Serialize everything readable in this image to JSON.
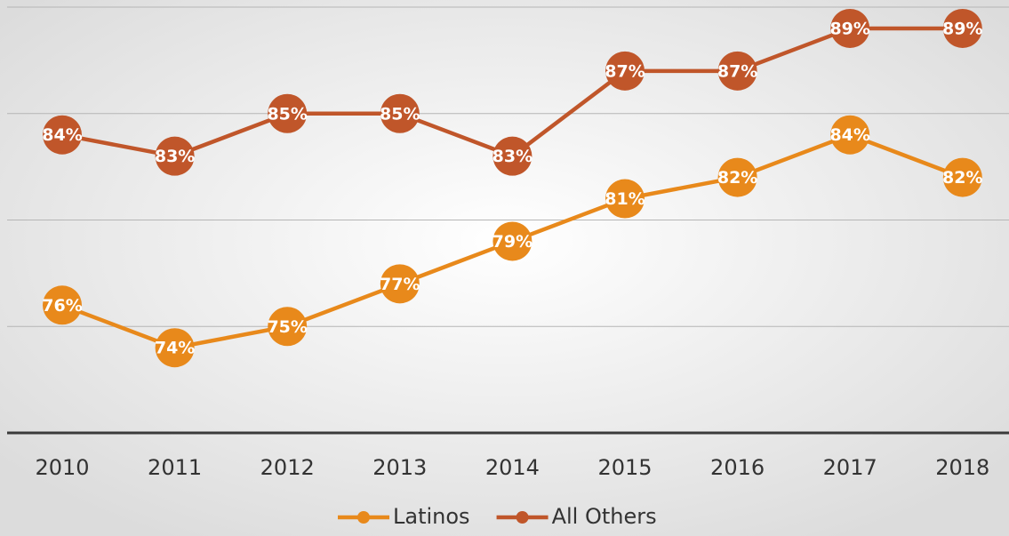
{
  "chart_data": {
    "type": "line",
    "categories": [
      "2010",
      "2011",
      "2012",
      "2013",
      "2014",
      "2015",
      "2016",
      "2017",
      "2018"
    ],
    "series": [
      {
        "name": "Latinos",
        "color": "#e8891b",
        "values": [
          76,
          74,
          75,
          77,
          79,
          81,
          82,
          84,
          82
        ],
        "value_labels": [
          "76%",
          "74%",
          "75%",
          "77%",
          "79%",
          "81%",
          "82%",
          "84%",
          "82%"
        ]
      },
      {
        "name": "All Others",
        "color": "#c0562a",
        "values": [
          84,
          83,
          85,
          85,
          83,
          87,
          87,
          89,
          89
        ],
        "value_labels": [
          "84%",
          "83%",
          "85%",
          "85%",
          "83%",
          "87%",
          "87%",
          "89%",
          "89%"
        ]
      }
    ],
    "ylim": [
      70,
      90
    ],
    "yticks": [
      70,
      75,
      80,
      85,
      90
    ],
    "grid": true,
    "legend": "bottom"
  }
}
